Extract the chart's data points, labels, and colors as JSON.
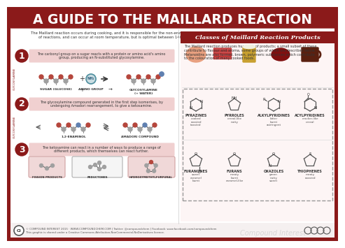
{
  "title": "A GUIDE TO THE MAILLARD REACTION",
  "bg_color": "#ffffff",
  "border_color": "#8B1A1A",
  "title_bg": "#8B1A1A",
  "title_color": "#ffffff",
  "intro_text": "The Maillard reaction occurs during cooking, and it is responsible for the non-enzymatic browning of foods when cooked. It actually consists of a number\nof reactions, and can occur at room temperature, but is optimal between 140-165°C. The Maillard reaction occurs in three stages, detailed here.",
  "step1_circle_color": "#8B1A1A",
  "step1_text": "The carbonyl group on a sugar reacts with a protein or amino acid's amino\ngroup, producing an N-substituted glycosylamine.",
  "step2_text": "The glycosylamine compound generated in the first step isomerises, by\nundergoing Amadori rearrangement, to give a ketosamine.",
  "step3_text": "The ketosamine can react in a number of ways to produce a range of\ndifferent products, which themselves can react further.",
  "step1_labels": [
    "SUGAR (GLUCOSE)",
    "+",
    "AMINO GROUP",
    "→",
    "GLYCOSYLAMINE\n(+ WATER)"
  ],
  "step2_labels": [
    "1,2-ENAMINOL",
    "AMADORI COMPOUND"
  ],
  "step3_labels": [
    "FISSION PRODUCTS",
    "REDUCTONES",
    "HYDROXYMETHYLFURFURAL"
  ],
  "right_title": "Classes of Maillard Reaction Products",
  "right_title_bg": "#8B1A1A",
  "right_desc": "The Maillard reaction produces hundreds of products; a small subset of these\ncontribute to flavour and aroma, some groups of which are described below.\nMelanoidins are also formed, brown, polymeric substances which contribute\nto the colouration of many cooked foods.",
  "compounds": [
    {
      "name": "PYRAZINES",
      "desc": "cooked\nroasted\ntoasted"
    },
    {
      "name": "PYRROLES",
      "desc": "cereal-like\nnutty"
    },
    {
      "name": "ALKYLPYRIDINES",
      "desc": "bitter\nburnt\nastringent"
    },
    {
      "name": "ACYLPYRIDINES",
      "desc": "cracker-like\ncereal"
    }
  ],
  "compounds2": [
    {
      "name": "FURANONES",
      "desc": "sweet\ncaramel\nburnt"
    },
    {
      "name": "FURANS",
      "desc": "meaty\nburnt\ncaramel-like"
    },
    {
      "name": "OXAZOLES",
      "desc": "green\nnutty\nsweet"
    },
    {
      "name": "THIOPHENES",
      "desc": "meaty\nroasted"
    }
  ],
  "footer_text": "© COMPOUND INTEREST 2015 · WWW.COMPOUNDCHEM.COM | Twitter: @compoundchem | Facebook: www.facebook.com/compoundchem\nThis graphic is shared under a Creative Commons Attribution-NonCommercial-NoDerivatives licence.",
  "watermark": "Compound Interest",
  "step_bg": "#f0d0d0",
  "pink_bg": "#f5e0e0",
  "right_bg": "#fdf5f5",
  "atom_red": "#b5463c",
  "atom_gray": "#a0a0a0",
  "atom_blue": "#6080b0",
  "atom_teal": "#5090a0",
  "food_colors": [
    "#e8a080",
    "#c03030",
    "#c8a030",
    "#801010",
    "#5a2010"
  ],
  "line_color": "#555555"
}
